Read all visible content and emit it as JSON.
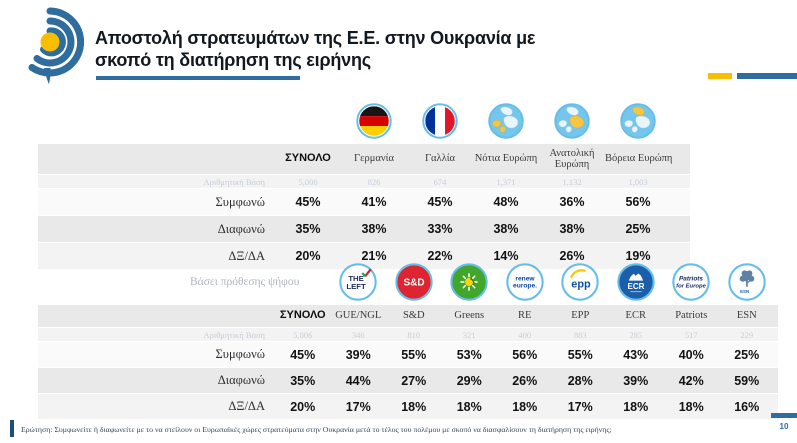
{
  "header": {
    "title": "Αποστολή στρατευμάτων της Ε.Ε. στην Ουκρανία με\nσκοπό τη διατήρηση της ειρήνης"
  },
  "palette": {
    "accent_blue": "#2E6D9E",
    "accent_yellow": "#F9BE00",
    "circle_ring_blue": "#66BEE8",
    "map_blue": "#74C6ED",
    "highlight_yellow": "#F6C544",
    "stripe_gray": "#E9E9E9"
  },
  "logo_texts": {
    "left_line1": "THE",
    "left_line2": "LEFT",
    "sd": "S&D",
    "renew_line1": "renew",
    "renew_line2": "europe.",
    "epp": "epp",
    "ecr": "ECR",
    "patriots_line1": "Patriots",
    "patriots_line2": "for Europe",
    "esn": "ESN"
  },
  "chart_data": [
    {
      "type": "table",
      "group_label": "",
      "base_label": "Αριθμητική Βάση",
      "columns": [
        "ΣΥΝΟΛΟ",
        "Γερμανία",
        "Γαλλία",
        "Νότια Ευρώπη",
        "Ανατολική Ευρώπη",
        "Βόρεια Ευρώπη"
      ],
      "icons": [
        "",
        "germany-flag",
        "france-flag",
        "map-south-europe",
        "map-east-europe",
        "map-north-europe"
      ],
      "base_values": [
        "5,006",
        "826",
        "674",
        "1,371",
        "1,132",
        "1,003"
      ],
      "rows": [
        {
          "label": "Συμφωνώ",
          "values": [
            "45%",
            "41%",
            "45%",
            "48%",
            "36%",
            "56%"
          ]
        },
        {
          "label": "Διαφωνώ",
          "values": [
            "35%",
            "38%",
            "33%",
            "38%",
            "38%",
            "25%"
          ]
        },
        {
          "label": "ΔΞ/ΔΑ",
          "values": [
            "20%",
            "21%",
            "22%",
            "14%",
            "26%",
            "19%"
          ]
        }
      ]
    },
    {
      "type": "table",
      "group_label": "Βάσει πρόθεσης ψήφου",
      "base_label": "Αριθμητική Βάση",
      "columns": [
        "ΣΥΝΟΛΟ",
        "GUE/NGL",
        "S&D",
        "Greens",
        "RE",
        "EPP",
        "ECR",
        "Patriots",
        "ESN"
      ],
      "icons": [
        "",
        "theleft-logo",
        "sd-logo",
        "greens-logo",
        "renew-logo",
        "epp-logo",
        "ecr-logo",
        "patriots-logo",
        "esn-logo"
      ],
      "base_values": [
        "5,006",
        "346",
        "810",
        "321",
        "400",
        "883",
        "285",
        "517",
        "229"
      ],
      "rows": [
        {
          "label": "Συμφωνώ",
          "values": [
            "45%",
            "39%",
            "55%",
            "53%",
            "56%",
            "55%",
            "43%",
            "40%",
            "25%"
          ]
        },
        {
          "label": "Διαφωνώ",
          "values": [
            "35%",
            "44%",
            "27%",
            "29%",
            "26%",
            "28%",
            "39%",
            "42%",
            "59%"
          ]
        },
        {
          "label": "ΔΞ/ΔΑ",
          "values": [
            "20%",
            "17%",
            "18%",
            "18%",
            "18%",
            "17%",
            "18%",
            "18%",
            "16%"
          ]
        }
      ]
    }
  ],
  "footer": {
    "question": "Ερώτηση: Συμφωνείτε ή διαφωνείτε με το να στείλουν οι Ευρωπαϊκές χώρες στρατεύματα στην Ουκρανία μετά το τέλος του πολέμου με σκοπό να διασφαλίσουν τη διατήρηση της ειρήνης;",
    "page_number": "10"
  }
}
